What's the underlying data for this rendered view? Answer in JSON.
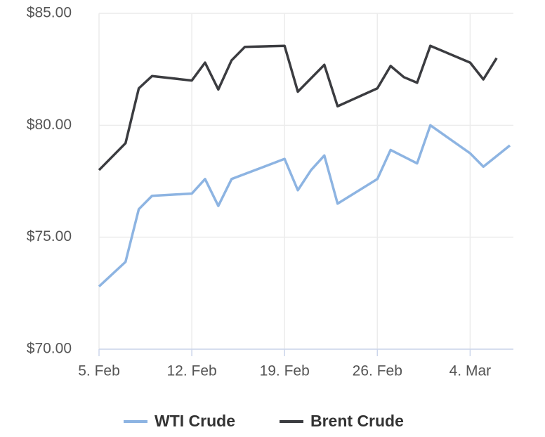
{
  "chart_data": {
    "type": "line",
    "xlim": [
      "02-05",
      "03-07"
    ],
    "xticks": [
      {
        "value": "02-05",
        "label": "5. Feb"
      },
      {
        "value": "02-12",
        "label": "12. Feb"
      },
      {
        "value": "02-19",
        "label": "19. Feb"
      },
      {
        "value": "02-26",
        "label": "26. Feb"
      },
      {
        "value": "03-04",
        "label": "4. Mar"
      }
    ],
    "ylim": [
      70,
      85
    ],
    "yticks": [
      {
        "value": 70,
        "label": "$70.00"
      },
      {
        "value": 75,
        "label": "$75.00"
      },
      {
        "value": 80,
        "label": "$80.00"
      },
      {
        "value": 85,
        "label": "$85.00"
      }
    ],
    "grid": true,
    "legend": "bottom",
    "series": [
      {
        "name": "WTI Crude",
        "color": "#8db4e2",
        "x": [
          "02-05",
          "02-07",
          "02-08",
          "02-09",
          "02-12",
          "02-13",
          "02-14",
          "02-15",
          "02-19",
          "02-20",
          "02-21",
          "02-22",
          "02-23",
          "02-26",
          "02-27",
          "02-29",
          "03-01",
          "03-04",
          "03-05",
          "03-07"
        ],
        "values": [
          72.8,
          73.9,
          76.25,
          76.85,
          76.95,
          77.6,
          76.4,
          77.6,
          78.5,
          77.1,
          78.0,
          78.65,
          76.5,
          77.6,
          78.9,
          78.3,
          80.0,
          78.75,
          78.15,
          79.1
        ]
      },
      {
        "name": "Brent Crude",
        "color": "#3b3c40",
        "x": [
          "02-05",
          "02-07",
          "02-08",
          "02-09",
          "02-12",
          "02-13",
          "02-14",
          "02-15",
          "02-16",
          "02-19",
          "02-20",
          "02-22",
          "02-23",
          "02-26",
          "02-27",
          "02-28",
          "02-29",
          "03-01",
          "03-04",
          "03-05",
          "03-06"
        ],
        "values": [
          78.0,
          79.2,
          81.65,
          82.2,
          82.0,
          82.8,
          81.6,
          82.9,
          83.5,
          83.55,
          81.5,
          82.7,
          80.85,
          81.65,
          82.65,
          82.15,
          81.9,
          83.55,
          82.8,
          82.05,
          83.0
        ]
      }
    ]
  }
}
